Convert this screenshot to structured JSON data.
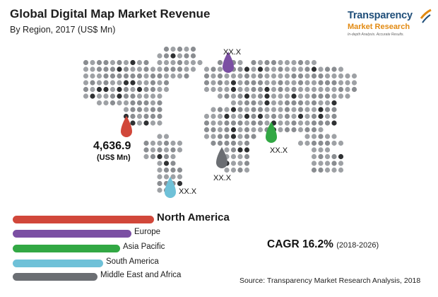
{
  "header": {
    "title": "Global Digital Map Market Revenue",
    "subtitle": "By Region, 2017 (US$ Mn)"
  },
  "logo": {
    "name": "Transparency",
    "name2": "Market Research",
    "tagline": "In-depth Analysis. Accurate Results."
  },
  "colors": {
    "north_america": "#d1473a",
    "europe": "#7b4fa3",
    "asia_pacific": "#32a844",
    "south_america": "#6fc1d8",
    "mea": "#6b6e73",
    "dots": "#8a8d91"
  },
  "chart_data": {
    "type": "bar",
    "title": "Global Digital Map Market Revenue",
    "subtitle": "By Region, 2017 (US$ Mn)",
    "categories": [
      "North America",
      "Europe",
      "Asia Pacific",
      "South America",
      "Middle East and Africa"
    ],
    "values": [
      4636.9,
      null,
      null,
      null,
      null
    ],
    "value_labels": [
      "4,636.9",
      "XX.X",
      "XX.X",
      "XX.X",
      "XX.X"
    ],
    "unit_label": "(US$ Mn)",
    "cagr": "CAGR 16.2%",
    "cagr_period": "(2018-2026)"
  },
  "legend": [
    {
      "label": "North America",
      "bar_fraction": 1.0
    },
    {
      "label": "Europe",
      "bar_fraction": 0.84
    },
    {
      "label": "Asia Pacific",
      "bar_fraction": 0.76
    },
    {
      "label": "South America",
      "bar_fraction": 0.64
    },
    {
      "label": "Middle East and Africa",
      "bar_fraction": 0.6
    }
  ],
  "source": "Source: Transparency Market Research Analysis, 2018"
}
